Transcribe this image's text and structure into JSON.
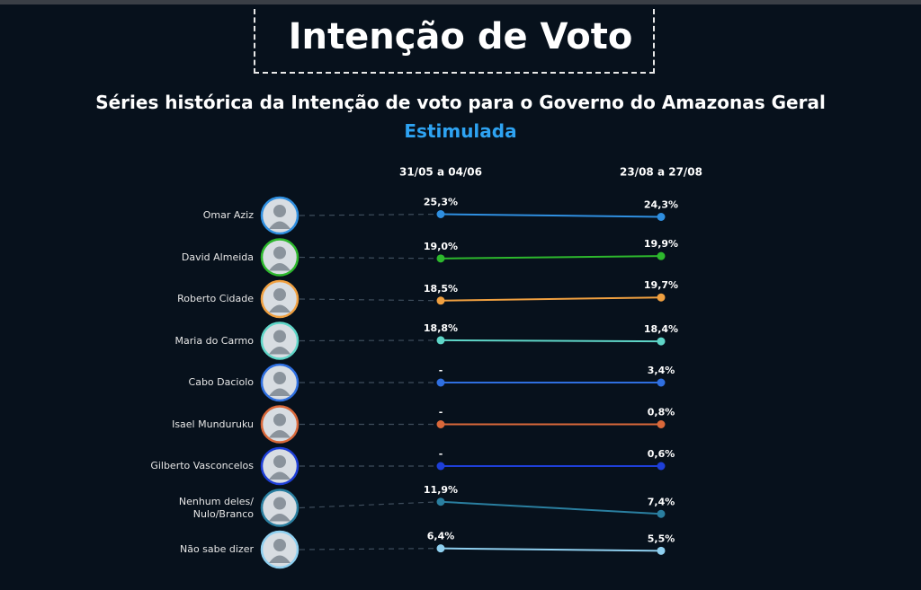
{
  "chart_data": {
    "type": "slope",
    "title": "Intenção de Voto",
    "subtitle": "Séries histórica da Intenção de voto para o Governo do Amazonas Geral",
    "subtitle_highlight": "Estimulada",
    "categories": [
      "Omar Aziz",
      "David Almeida",
      "Roberto Cidade",
      "Maria do Carmo",
      "Cabo Daciolo",
      "Isael Munduruku",
      "Gilberto Vasconcelos",
      "Nenhum deles/ Nulo/Branco",
      "Não sabe dizer"
    ],
    "colors": [
      "#2f8fe0",
      "#2db82d",
      "#f0a040",
      "#5fd6c8",
      "#2f6fe0",
      "#d9683a",
      "#1e3fd8",
      "#2a7fa0",
      "#8fd0f0"
    ],
    "series": [
      {
        "name": "31/05 a 04/06",
        "values": [
          25.3,
          19.0,
          18.5,
          18.8,
          null,
          null,
          null,
          11.9,
          6.4
        ],
        "value_labels": [
          "25,3%",
          "19,0%",
          "18,5%",
          "18,8%",
          "-",
          "-",
          "-",
          "11,9%",
          "6,4%"
        ]
      },
      {
        "name": "23/08 a 27/08",
        "values": [
          24.3,
          19.9,
          19.7,
          18.4,
          3.4,
          0.8,
          0.6,
          7.4,
          5.5
        ],
        "value_labels": [
          "24,3%",
          "19,9%",
          "19,7%",
          "18,4%",
          "3,4%",
          "0,8%",
          "0,6%",
          "7,4%",
          "5,5%"
        ]
      }
    ]
  }
}
